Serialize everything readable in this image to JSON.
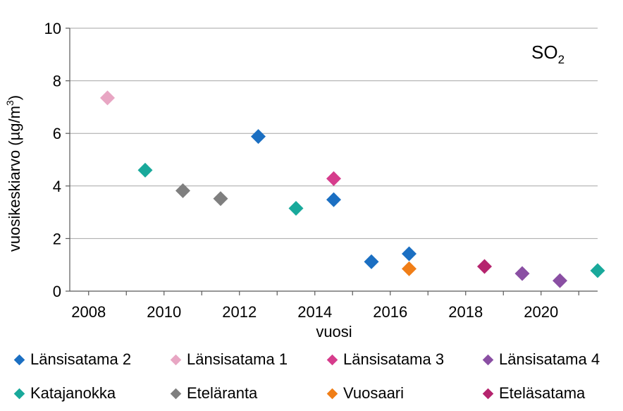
{
  "chart_data": {
    "type": "scatter",
    "annotation": {
      "main": "SO",
      "subscript": "2"
    },
    "xlabel": "vuosi",
    "ylabel_main": "vuosikeskiarvo (µg/m",
    "ylabel_sup": "3",
    "ylabel_close": ")",
    "xlim": [
      2007.5,
      2021.5
    ],
    "ylim": [
      0,
      10
    ],
    "yticks": [
      0,
      2,
      4,
      6,
      8,
      10
    ],
    "xticks": [
      2008,
      2010,
      2012,
      2014,
      2016,
      2018,
      2020
    ],
    "grid": "horizontal",
    "legend_position": "bottom",
    "series": [
      {
        "name": "Länsisatama 2",
        "color": "#1b6fc2",
        "points": [
          [
            2012.5,
            5.88
          ],
          [
            2014.5,
            3.48
          ],
          [
            2015.5,
            1.12
          ],
          [
            2016.5,
            1.42
          ]
        ]
      },
      {
        "name": "Länsisatama 1",
        "color": "#e8a6c3",
        "points": [
          [
            2008.5,
            7.35
          ]
        ]
      },
      {
        "name": "Länsisatama 3",
        "color": "#d63c8c",
        "points": [
          [
            2014.5,
            4.28
          ]
        ]
      },
      {
        "name": "Länsisatama 4",
        "color": "#8a4fa3",
        "points": [
          [
            2019.5,
            0.67
          ],
          [
            2020.5,
            0.4
          ]
        ]
      },
      {
        "name": "Katajanokka",
        "color": "#19a99b",
        "points": [
          [
            2009.5,
            4.6
          ],
          [
            2013.5,
            3.15
          ],
          [
            2021.5,
            0.78
          ]
        ]
      },
      {
        "name": "Eteläranta",
        "color": "#7f7f7f",
        "points": [
          [
            2010.5,
            3.82
          ],
          [
            2011.5,
            3.52
          ]
        ]
      },
      {
        "name": "Vuosaari",
        "color": "#f07e17",
        "points": [
          [
            2016.5,
            0.85
          ]
        ]
      },
      {
        "name": "Eteläsatama",
        "color": "#b5246e",
        "points": [
          [
            2018.5,
            0.94
          ]
        ]
      }
    ]
  }
}
